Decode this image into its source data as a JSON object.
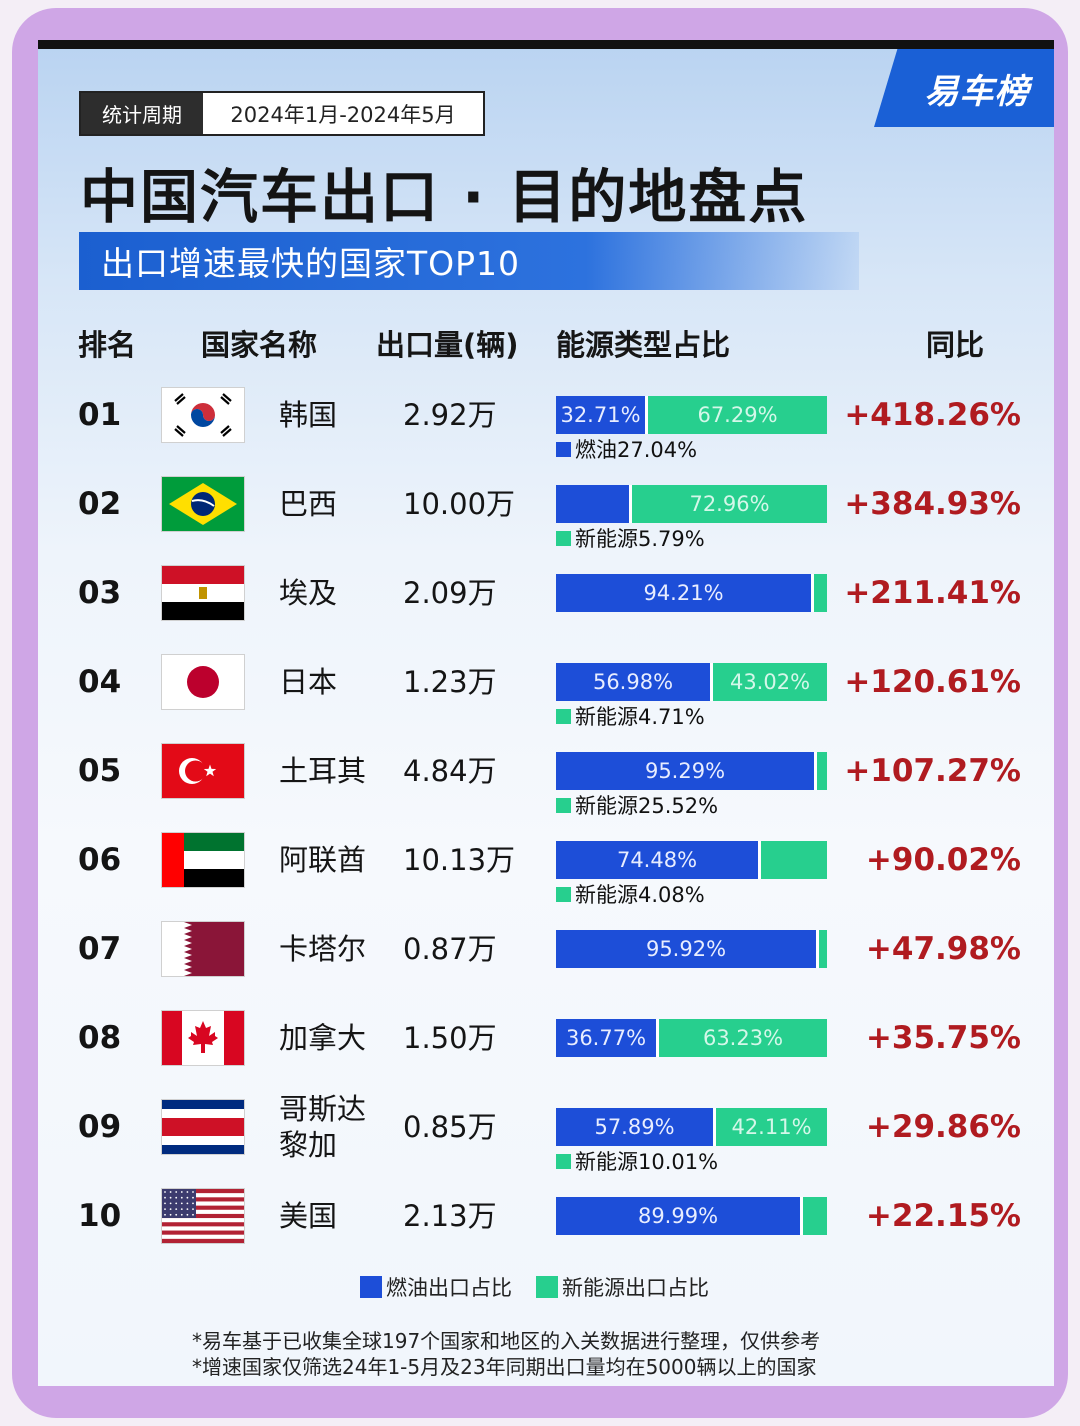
{
  "brand": "易车榜",
  "period": {
    "label": "统计周期",
    "value": "2024年1月-2024年5月"
  },
  "title": "中国汽车出口 · 目的地盘点",
  "subtitle": "出口增速最快的国家TOP10",
  "headers": {
    "rank": "排名",
    "country": "国家名称",
    "exports": "出口量(辆)",
    "energy": "能源类型占比",
    "yoy": "同比"
  },
  "colors": {
    "fuel": "#1d4ed8",
    "nev": "#27cf8e",
    "yoy": "#b01b20",
    "accent": "#1b5fd0"
  },
  "chart_data": {
    "type": "table",
    "columns": [
      "排名",
      "国家名称",
      "出口量(辆)",
      "能源类型占比",
      "同比"
    ],
    "series_names": [
      "燃油出口占比",
      "新能源出口占比"
    ],
    "rows": [
      {
        "rank": "01",
        "country": "韩国",
        "flag": "south-korea-flag",
        "exports": "2.92万",
        "fuel_pct": 32.71,
        "nev_pct": 67.29,
        "fuel_label": "32.71%",
        "nev_label": "67.29%",
        "note": "",
        "note_type": "",
        "yoy": "+418.26%"
      },
      {
        "rank": "02",
        "country": "巴西",
        "flag": "brazil-flag",
        "exports": "10.00万",
        "fuel_pct": 27.04,
        "nev_pct": 72.96,
        "fuel_label": "",
        "nev_label": "72.96%",
        "note": "燃油27.04%",
        "note_type": "fuel",
        "yoy": "+384.93%"
      },
      {
        "rank": "03",
        "country": "埃及",
        "flag": "egypt-flag",
        "exports": "2.09万",
        "fuel_pct": 94.21,
        "nev_pct": 5.79,
        "fuel_label": "94.21%",
        "nev_label": "",
        "note": "新能源5.79%",
        "note_type": "nev",
        "yoy": "+211.41%"
      },
      {
        "rank": "04",
        "country": "日本",
        "flag": "japan-flag",
        "exports": "1.23万",
        "fuel_pct": 56.98,
        "nev_pct": 43.02,
        "fuel_label": "56.98%",
        "nev_label": "43.02%",
        "note": "",
        "note_type": "",
        "yoy": "+120.61%"
      },
      {
        "rank": "05",
        "country": "土耳其",
        "flag": "turkey-flag",
        "exports": "4.84万",
        "fuel_pct": 95.29,
        "nev_pct": 4.71,
        "fuel_label": "95.29%",
        "nev_label": "",
        "note": "新能源4.71%",
        "note_type": "nev",
        "yoy": "+107.27%"
      },
      {
        "rank": "06",
        "country": "阿联酋",
        "flag": "uae-flag",
        "exports": "10.13万",
        "fuel_pct": 74.48,
        "nev_pct": 25.52,
        "fuel_label": "74.48%",
        "nev_label": "",
        "note": "新能源25.52%",
        "note_type": "nev",
        "yoy": "+90.02%"
      },
      {
        "rank": "07",
        "country": "卡塔尔",
        "flag": "qatar-flag",
        "exports": "0.87万",
        "fuel_pct": 95.92,
        "nev_pct": 4.08,
        "fuel_label": "95.92%",
        "nev_label": "",
        "note": "新能源4.08%",
        "note_type": "nev",
        "yoy": "+47.98%"
      },
      {
        "rank": "08",
        "country": "加拿大",
        "flag": "canada-flag",
        "exports": "1.50万",
        "fuel_pct": 36.77,
        "nev_pct": 63.23,
        "fuel_label": "36.77%",
        "nev_label": "63.23%",
        "note": "",
        "note_type": "",
        "yoy": "+35.75%"
      },
      {
        "rank": "09",
        "country": "哥斯达黎加",
        "flag": "costa-rica-flag",
        "exports": "0.85万",
        "fuel_pct": 57.89,
        "nev_pct": 42.11,
        "fuel_label": "57.89%",
        "nev_label": "42.11%",
        "note": "",
        "note_type": "",
        "yoy": "+29.86%"
      },
      {
        "rank": "10",
        "country": "美国",
        "flag": "usa-flag",
        "exports": "2.13万",
        "fuel_pct": 89.99,
        "nev_pct": 10.01,
        "fuel_label": "89.99%",
        "nev_label": "",
        "note": "新能源10.01%",
        "note_type": "nev",
        "yoy": "+22.15%"
      }
    ]
  },
  "legend": {
    "fuel": "燃油出口占比",
    "nev": "新能源出口占比"
  },
  "footnotes": [
    "*易车基于已收集全球197个国家和地区的入关数据进行整理，仅供参考",
    "*增速国家仅筛选24年1-5月及23年同期出口量均在5000辆以上的国家"
  ]
}
